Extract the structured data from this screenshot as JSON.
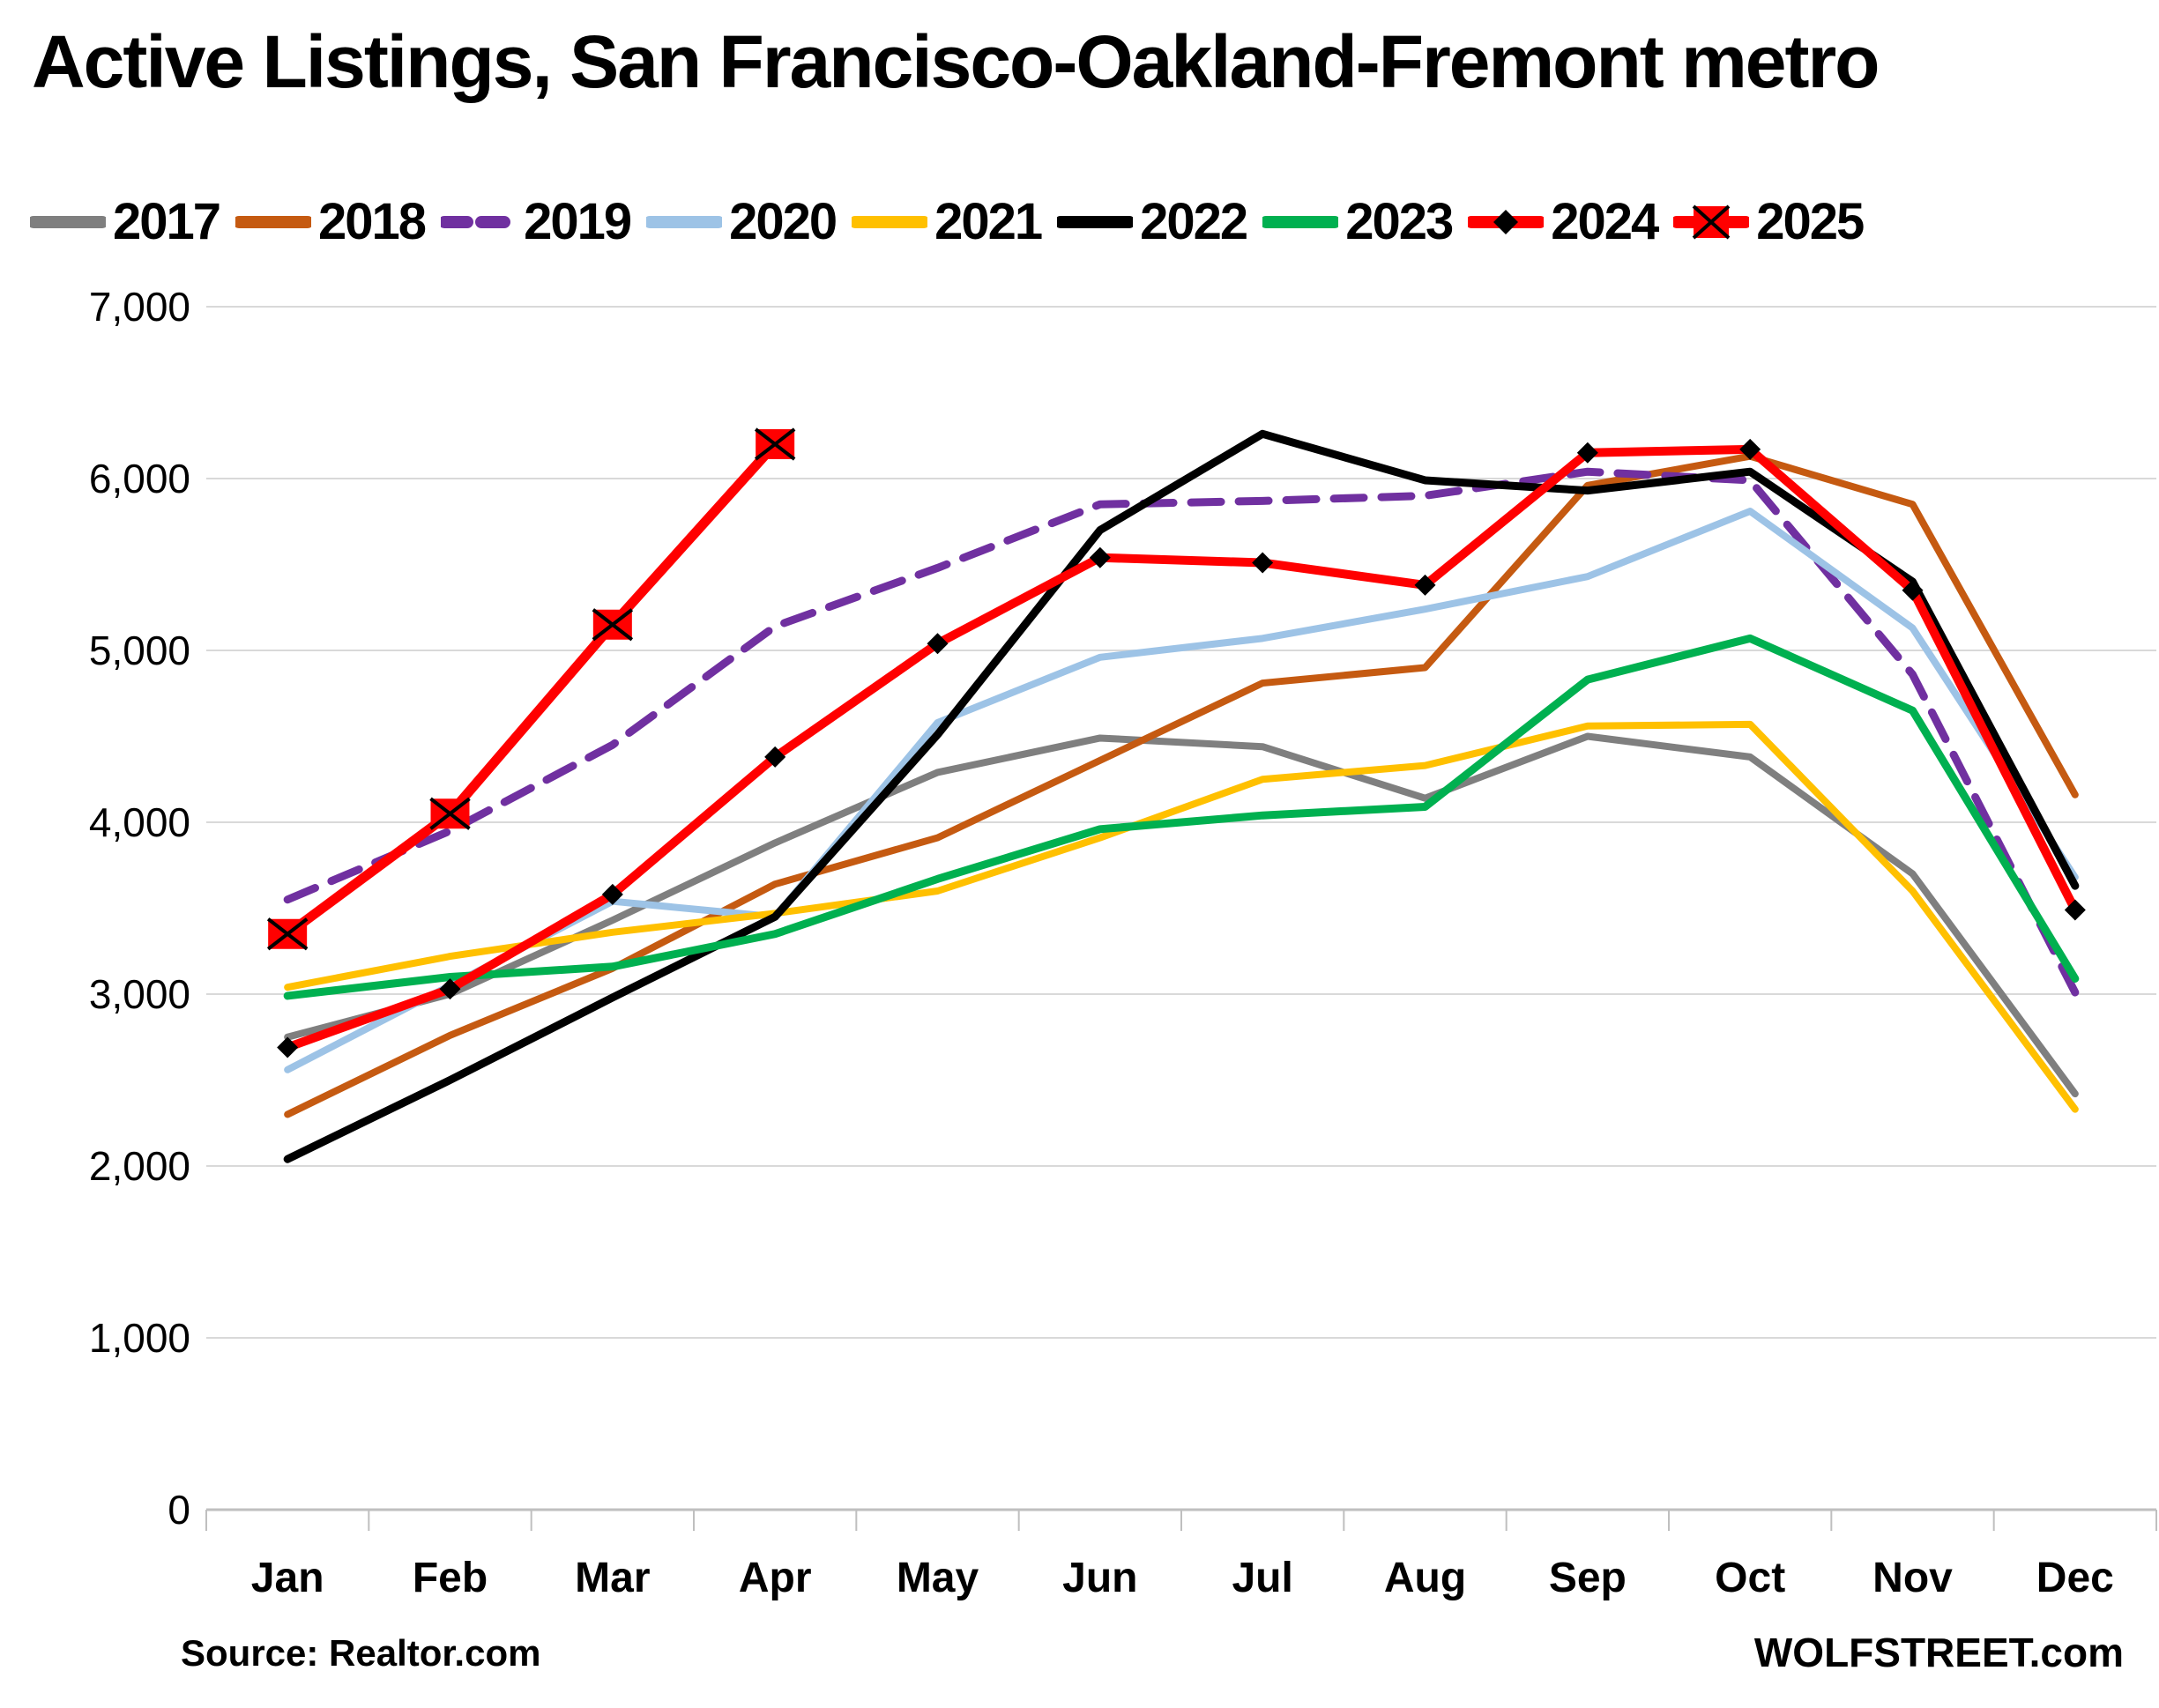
{
  "title": "Active Listings, San Francisco-Oakland-Fremont metro",
  "footer": {
    "source": "Source: Realtor.com",
    "brand": "WOLFSTREET.com"
  },
  "chart_data": {
    "type": "line",
    "title": "Active Listings, San Francisco-Oakland-Fremont metro",
    "categories": [
      "Jan",
      "Feb",
      "Mar",
      "Apr",
      "May",
      "Jun",
      "Jul",
      "Aug",
      "Sep",
      "Oct",
      "Nov",
      "Dec"
    ],
    "xlabel": "",
    "ylabel": "",
    "ylim": [
      0,
      7000
    ],
    "y_tick_step": 1000,
    "y_tick_labels": [
      "0",
      "1,000",
      "2,000",
      "3,000",
      "4,000",
      "5,000",
      "6,000",
      "7,000"
    ],
    "grid": true,
    "legend_position": "top",
    "grid_color": "#D9D9D9",
    "axis_color": "#BFBFBF",
    "series": [
      {
        "name": "2017",
        "color": "#7F7F7F",
        "style": "solid",
        "width": 8,
        "marker": "none",
        "values": [
          2750,
          3000,
          3430,
          3880,
          4290,
          4490,
          4440,
          4140,
          4500,
          4380,
          3700,
          2420
        ]
      },
      {
        "name": "2018",
        "color": "#C55A11",
        "style": "solid",
        "width": 8,
        "marker": "none",
        "values": [
          2300,
          2760,
          3150,
          3640,
          3910,
          4360,
          4810,
          4900,
          5960,
          6130,
          5850,
          4160
        ]
      },
      {
        "name": "2019",
        "color": "#7030A0",
        "style": "dashed",
        "width": 9,
        "marker": "none",
        "values": [
          3550,
          3950,
          4450,
          5140,
          5480,
          5850,
          5870,
          5900,
          6040,
          5990,
          4860,
          3010
        ]
      },
      {
        "name": "2020",
        "color": "#9DC3E6",
        "style": "solid",
        "width": 8,
        "marker": "none",
        "values": [
          2560,
          3050,
          3540,
          3450,
          4580,
          4960,
          5070,
          5240,
          5430,
          5810,
          5130,
          3680
        ]
      },
      {
        "name": "2021",
        "color": "#FFC000",
        "style": "solid",
        "width": 8,
        "marker": "none",
        "values": [
          3040,
          3220,
          3360,
          3470,
          3600,
          3910,
          4250,
          4330,
          4560,
          4570,
          3600,
          2330
        ]
      },
      {
        "name": "2022",
        "color": "#000000",
        "style": "solid",
        "width": 9,
        "marker": "none",
        "values": [
          2040,
          2500,
          2980,
          3450,
          4510,
          5700,
          6260,
          5990,
          5930,
          6040,
          5400,
          3630
        ]
      },
      {
        "name": "2023",
        "color": "#00B050",
        "style": "solid",
        "width": 9,
        "marker": "none",
        "values": [
          2990,
          3100,
          3160,
          3350,
          3670,
          3960,
          4040,
          4090,
          4830,
          5070,
          4650,
          3090
        ]
      },
      {
        "name": "2024",
        "color": "#FF0000",
        "style": "solid",
        "width": 10,
        "marker": "diamond",
        "marker_color": "#000000",
        "values": [
          2690,
          3030,
          3580,
          4380,
          5040,
          5540,
          5510,
          5380,
          6150,
          6170,
          5350,
          3490
        ]
      },
      {
        "name": "2025",
        "color": "#FF0000",
        "style": "solid",
        "width": 11,
        "marker": "square-x",
        "marker_color": "#FF0000",
        "values": [
          3350,
          4050,
          5150,
          6200,
          null,
          null,
          null,
          null,
          null,
          null,
          null,
          null
        ]
      }
    ]
  }
}
